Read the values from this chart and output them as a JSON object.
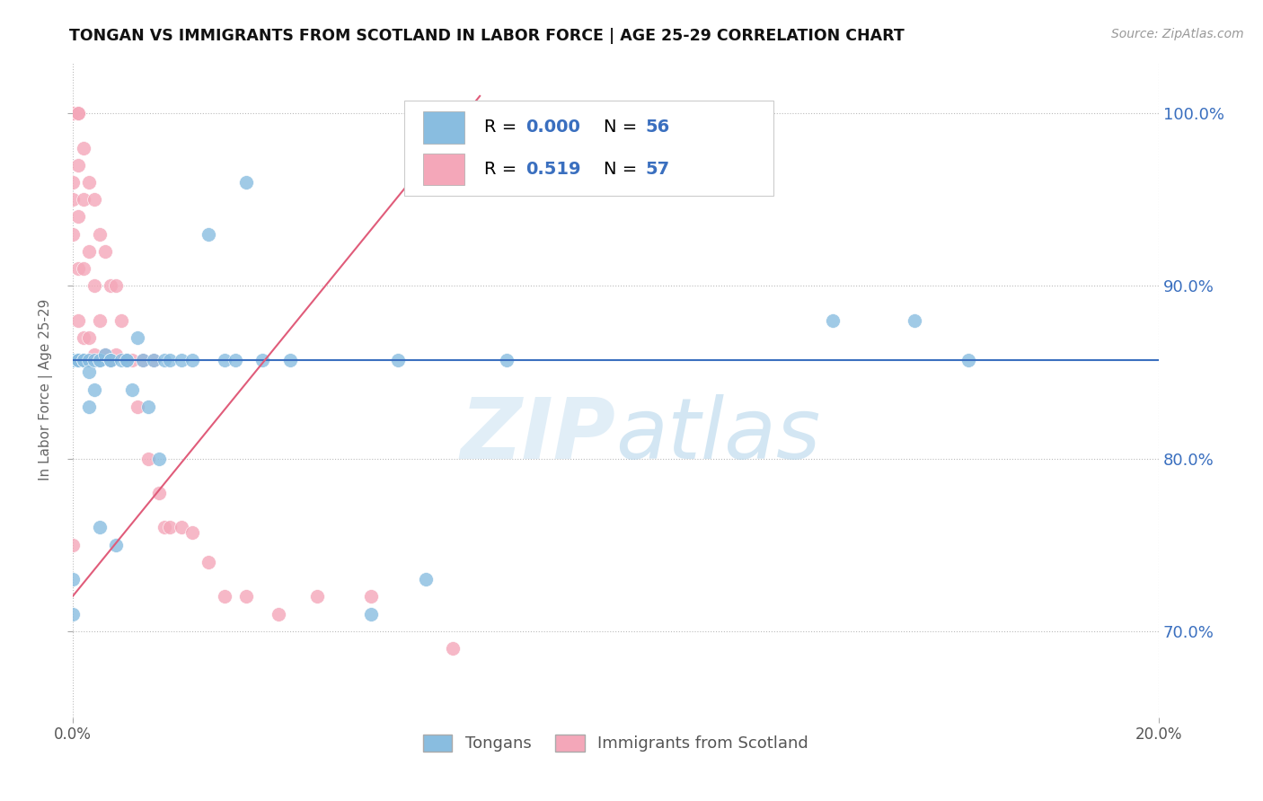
{
  "title": "TONGAN VS IMMIGRANTS FROM SCOTLAND IN LABOR FORCE | AGE 25-29 CORRELATION CHART",
  "source": "Source: ZipAtlas.com",
  "ylabel": "In Labor Force | Age 25-29",
  "xlim": [
    0.0,
    0.2
  ],
  "ylim": [
    0.65,
    1.03
  ],
  "yticks": [
    0.7,
    0.8,
    0.9,
    1.0
  ],
  "ytick_labels": [
    "70.0%",
    "80.0%",
    "90.0%",
    "100.0%"
  ],
  "xticks": [
    0.0,
    0.2
  ],
  "xtick_labels": [
    "0.0%",
    "20.0%"
  ],
  "blue_R": "0.000",
  "blue_N": "56",
  "pink_R": "0.519",
  "pink_N": "57",
  "blue_color": "#89bde0",
  "pink_color": "#f4a7b9",
  "blue_line_color": "#3a6fbf",
  "pink_line_color": "#e05c7a",
  "legend_blue_label": "Tongans",
  "legend_pink_label": "Immigrants from Scotland",
  "watermark_zip": "ZIP",
  "watermark_atlas": "atlas",
  "blue_scatter_x": [
    0.0,
    0.0,
    0.0,
    0.0,
    0.0,
    0.0,
    0.0,
    0.0,
    0.0,
    0.0,
    0.0,
    0.0,
    0.001,
    0.001,
    0.001,
    0.001,
    0.002,
    0.002,
    0.003,
    0.003,
    0.003,
    0.004,
    0.004,
    0.005,
    0.005,
    0.005,
    0.006,
    0.007,
    0.007,
    0.008,
    0.009,
    0.01,
    0.01,
    0.011,
    0.012,
    0.013,
    0.014,
    0.015,
    0.016,
    0.017,
    0.018,
    0.02,
    0.022,
    0.025,
    0.028,
    0.03,
    0.032,
    0.035,
    0.04,
    0.055,
    0.06,
    0.065,
    0.08,
    0.14,
    0.155,
    0.165
  ],
  "blue_scatter_y": [
    0.857,
    0.857,
    0.857,
    0.857,
    0.857,
    0.857,
    0.857,
    0.857,
    0.857,
    0.73,
    0.71,
    0.857,
    0.857,
    0.857,
    0.857,
    0.857,
    0.857,
    0.857,
    0.857,
    0.85,
    0.83,
    0.84,
    0.857,
    0.857,
    0.857,
    0.76,
    0.86,
    0.857,
    0.857,
    0.75,
    0.857,
    0.857,
    0.857,
    0.84,
    0.87,
    0.857,
    0.83,
    0.857,
    0.8,
    0.857,
    0.857,
    0.857,
    0.857,
    0.93,
    0.857,
    0.857,
    0.96,
    0.857,
    0.857,
    0.71,
    0.857,
    0.73,
    0.857,
    0.88,
    0.88,
    0.857
  ],
  "pink_scatter_x": [
    0.0,
    0.0,
    0.0,
    0.0,
    0.0,
    0.0,
    0.0,
    0.0,
    0.0,
    0.0,
    0.0,
    0.0,
    0.0,
    0.0,
    0.001,
    0.001,
    0.001,
    0.001,
    0.001,
    0.001,
    0.002,
    0.002,
    0.002,
    0.002,
    0.003,
    0.003,
    0.003,
    0.004,
    0.004,
    0.004,
    0.005,
    0.005,
    0.006,
    0.006,
    0.007,
    0.007,
    0.008,
    0.008,
    0.009,
    0.01,
    0.011,
    0.012,
    0.013,
    0.014,
    0.015,
    0.016,
    0.017,
    0.018,
    0.02,
    0.022,
    0.025,
    0.028,
    0.032,
    0.038,
    0.045,
    0.055,
    0.07
  ],
  "pink_scatter_y": [
    1.0,
    1.0,
    1.0,
    1.0,
    1.0,
    1.0,
    1.0,
    1.0,
    1.0,
    1.0,
    0.96,
    0.95,
    0.93,
    0.75,
    1.0,
    1.0,
    0.97,
    0.94,
    0.91,
    0.88,
    0.98,
    0.95,
    0.91,
    0.87,
    0.96,
    0.92,
    0.87,
    0.95,
    0.9,
    0.86,
    0.93,
    0.88,
    0.92,
    0.86,
    0.9,
    0.857,
    0.9,
    0.86,
    0.88,
    0.857,
    0.857,
    0.83,
    0.857,
    0.8,
    0.857,
    0.78,
    0.76,
    0.76,
    0.76,
    0.757,
    0.74,
    0.72,
    0.72,
    0.71,
    0.72,
    0.72,
    0.69
  ],
  "blue_line_y": 0.857,
  "pink_line_x0": 0.0,
  "pink_line_x1": 0.075,
  "pink_line_y0": 0.72,
  "pink_line_y1": 1.01
}
